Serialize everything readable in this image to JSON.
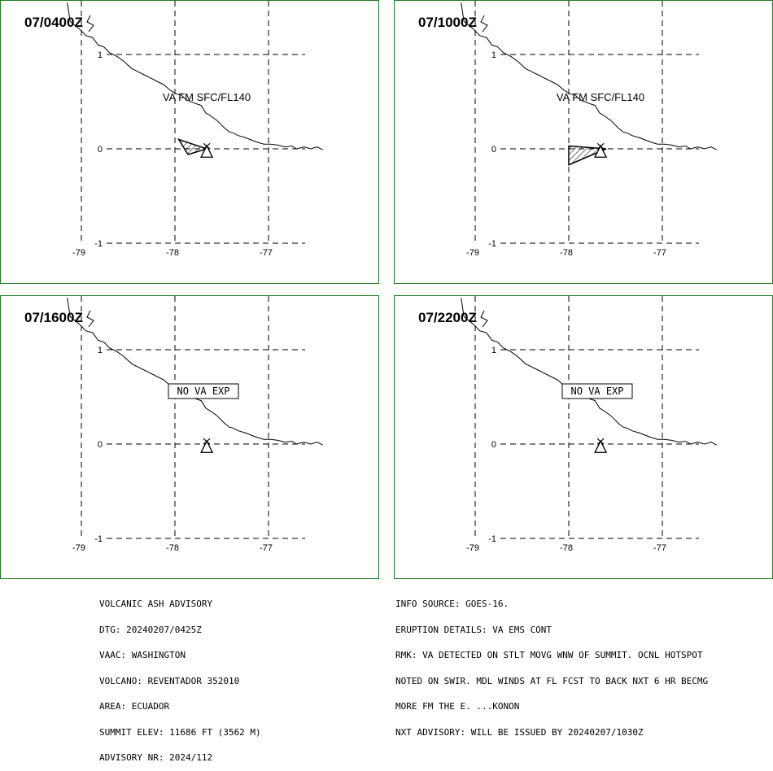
{
  "panels": [
    {
      "id": "p1",
      "time": "07/0400Z",
      "label_type": "text",
      "label": "VA FM SFC/FL140",
      "ash": [
        [
          -77.96,
          0.1
        ],
        [
          -77.66,
          0.0
        ],
        [
          -77.86,
          -0.06
        ]
      ]
    },
    {
      "id": "p2",
      "time": "07/1000Z",
      "label_type": "text",
      "label": "VA FM SFC/FL140",
      "ash": [
        [
          -78.0,
          0.03
        ],
        [
          -77.6,
          0.0
        ],
        [
          -78.0,
          -0.17
        ]
      ]
    },
    {
      "id": "p3",
      "time": "07/1600Z",
      "label_type": "box",
      "label": "NO VA EXP",
      "ash": []
    },
    {
      "id": "p4",
      "time": "07/2200Z",
      "label_type": "box",
      "label": "NO VA EXP",
      "ash": []
    }
  ],
  "grid": {
    "lon_ticks": [
      "-79",
      "-78",
      "-77"
    ],
    "lat_ticks": [
      "1",
      "0",
      "-1"
    ]
  },
  "volcano": {
    "lon": -77.66,
    "lat": -0.08
  },
  "coastline": [
    [
      -79.15,
      1.55
    ],
    [
      -79.12,
      1.35
    ],
    [
      -79.02,
      1.27
    ],
    [
      -78.95,
      1.2
    ],
    [
      -78.88,
      1.18
    ],
    [
      -78.82,
      1.1
    ],
    [
      -78.76,
      1.08
    ],
    [
      -78.7,
      1.02
    ],
    [
      -78.62,
      0.98
    ],
    [
      -78.55,
      0.93
    ],
    [
      -78.46,
      0.85
    ],
    [
      -78.4,
      0.82
    ],
    [
      -78.32,
      0.78
    ],
    [
      -78.28,
      0.76
    ],
    [
      -78.2,
      0.72
    ],
    [
      -78.12,
      0.68
    ],
    [
      -78.05,
      0.62
    ],
    [
      -77.98,
      0.58
    ],
    [
      -77.93,
      0.57
    ],
    [
      -77.88,
      0.52
    ],
    [
      -77.78,
      0.48
    ],
    [
      -77.72,
      0.46
    ],
    [
      -77.67,
      0.38
    ],
    [
      -77.62,
      0.35
    ],
    [
      -77.55,
      0.3
    ],
    [
      -77.52,
      0.27
    ],
    [
      -77.47,
      0.22
    ],
    [
      -77.42,
      0.18
    ],
    [
      -77.38,
      0.17
    ],
    [
      -77.32,
      0.14
    ],
    [
      -77.25,
      0.12
    ],
    [
      -77.2,
      0.1
    ],
    [
      -77.12,
      0.07
    ],
    [
      -77.05,
      0.05
    ],
    [
      -76.98,
      0.05
    ],
    [
      -76.9,
      0.04
    ],
    [
      -76.82,
      0.02
    ],
    [
      -76.75,
      0.03
    ],
    [
      -76.7,
      0.0
    ],
    [
      -76.62,
      0.02
    ],
    [
      -76.55,
      0.0
    ],
    [
      -76.48,
      0.02
    ],
    [
      -76.42,
      -0.01
    ]
  ],
  "advisory_left": [
    "VOLCANIC ASH ADVISORY",
    "DTG: 20240207/0425Z",
    "VAAC: WASHINGTON",
    "VOLCANO: REVENTADOR 352010",
    "AREA: ECUADOR",
    "SUMMIT ELEV: 11686 FT (3562 M)",
    "ADVISORY NR: 2024/112"
  ],
  "advisory_right": [
    "INFO SOURCE: GOES-16.",
    "ERUPTION DETAILS: VA EMS CONT",
    "RMK: VA DETECTED ON STLT MOVG WNW OF SUMMIT. OCNL HOTSPOT",
    "NOTED ON SWIR. MDL WINDS AT FL FCST TO BACK NXT 6 HR BECMG",
    "MORE FM THE E. ...KONON",
    "NXT ADVISORY: WILL BE ISSUED BY 20240207/1030Z"
  ],
  "colors": {
    "frame": "#1f7a1f",
    "ink": "#000000"
  }
}
